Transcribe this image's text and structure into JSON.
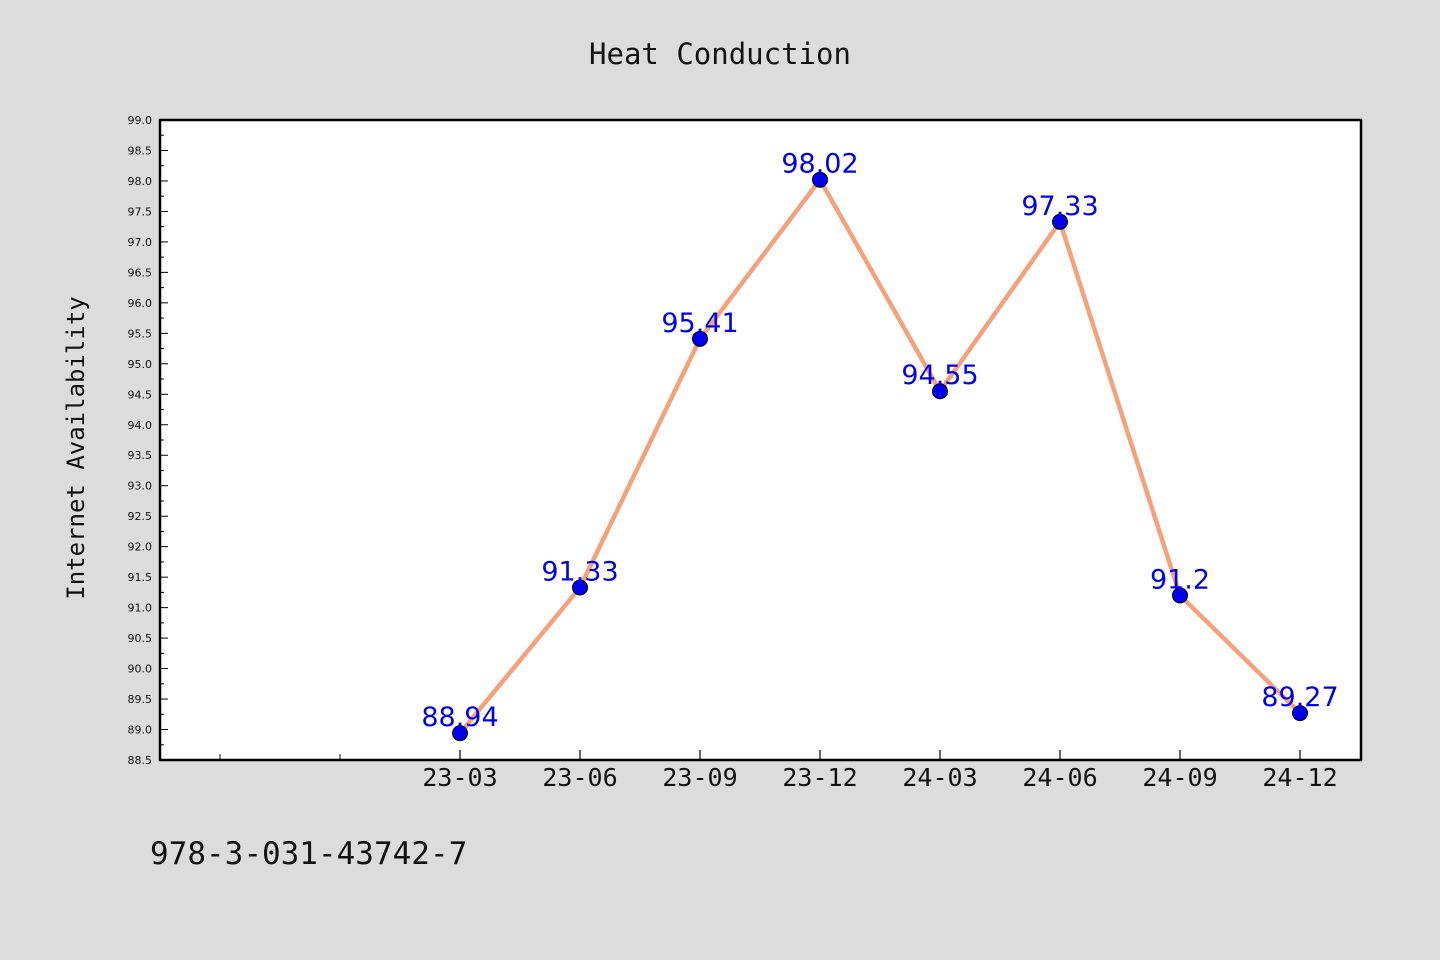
{
  "chart_data": {
    "type": "line",
    "title": "Heat Conduction",
    "xlabel": "",
    "ylabel": "Internet Availability",
    "categories": [
      "23-03",
      "23-06",
      "23-09",
      "23-12",
      "24-03",
      "24-06",
      "24-09",
      "24-12"
    ],
    "series": [
      {
        "values": [
          88.94,
          91.33,
          95.41,
          98.02,
          94.55,
          97.33,
          91.2,
          89.27
        ],
        "data_labels": [
          "88.94",
          "91.33",
          "95.41",
          "98.02",
          "94.55",
          "97.33",
          "91.2",
          "89.27"
        ],
        "line_color": "#f4a27e",
        "marker_color": "#0000ee",
        "label_color": "#0000ee"
      }
    ],
    "ylim": [
      88.5,
      99.0
    ],
    "yticks": [
      "88.5",
      "89.0",
      "89.5",
      "90.0",
      "90.5",
      "91.0",
      "91.5",
      "92.0",
      "92.5",
      "93.0",
      "93.5",
      "94.0",
      "94.5",
      "95.0",
      "95.5",
      "96.0",
      "96.5",
      "97.0",
      "97.5",
      "98.0",
      "98.5",
      "99.0"
    ],
    "grid": false,
    "legend": "none",
    "plot_background": "#ffffff",
    "page_background": "#dcdcdc"
  },
  "footer": {
    "code": "978-3-031-43742-7"
  }
}
